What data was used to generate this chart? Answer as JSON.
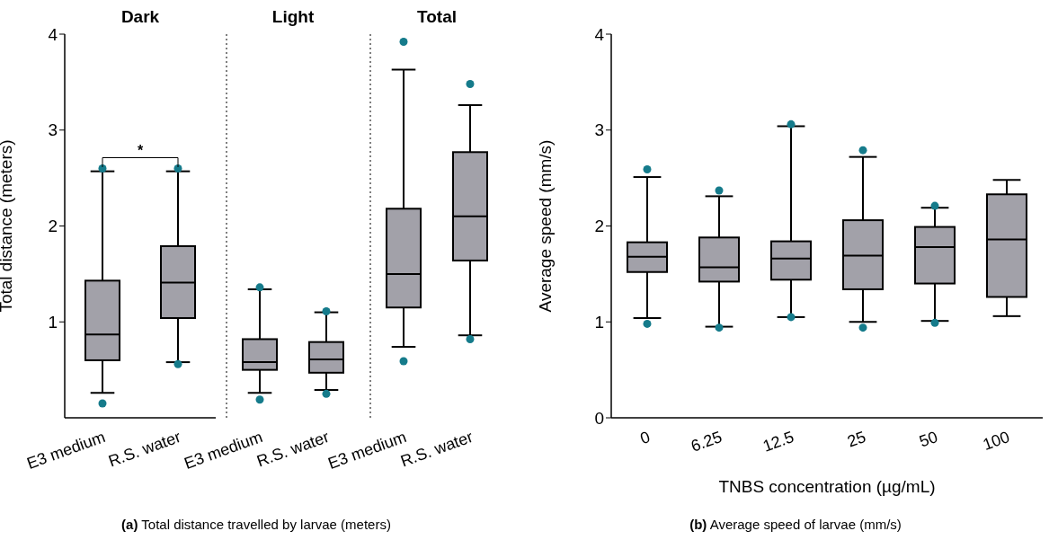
{
  "chart_data": [
    {
      "type": "box",
      "title": "Dark",
      "ylabel": "Total distance (meters)",
      "categories": [
        "E3 medium",
        "R.S. water"
      ],
      "ylim": [
        0,
        4
      ],
      "yticks": [
        1,
        2,
        3,
        4
      ],
      "series": [
        {
          "type": "box",
          "color": "#a2a1a9",
          "boxes": [
            {
              "low": 0.26,
              "q1": 0.6,
              "median": 0.87,
              "q3": 1.43,
              "high": 2.57
            },
            {
              "low": 0.58,
              "q1": 1.04,
              "median": 1.41,
              "q3": 1.79,
              "high": 2.57
            }
          ]
        },
        {
          "type": "scatter",
          "color": "#157b8b",
          "x": [
            "E3 medium",
            "E3 medium",
            "R.S. water",
            "R.S. water"
          ],
          "values": [
            2.6,
            0.15,
            2.6,
            0.56
          ]
        }
      ],
      "annotations": [
        "*",
        "(a) Total distance travelled by larvae (meters)"
      ]
    },
    {
      "type": "box",
      "title": "Light",
      "categories": [
        "E3 medium",
        "R.S. water"
      ],
      "ylim": [
        0,
        4
      ],
      "yticks": [
        1,
        2,
        3,
        4
      ],
      "tick_labels": "x",
      "series": [
        {
          "type": "box",
          "color": "#a2a1a9",
          "boxes": [
            {
              "low": 0.26,
              "q1": 0.5,
              "median": 0.58,
              "q3": 0.82,
              "high": 1.34
            },
            {
              "low": 0.29,
              "q1": 0.47,
              "median": 0.61,
              "q3": 0.79,
              "high": 1.1
            }
          ]
        },
        {
          "type": "scatter",
          "color": "#157b8b",
          "x": [
            "E3 medium",
            "E3 medium",
            "R.S. water",
            "R.S. water"
          ],
          "values": [
            1.36,
            0.19,
            1.11,
            0.25
          ]
        }
      ]
    },
    {
      "type": "box",
      "title": "Total",
      "categories": [
        "E3 medium",
        "R.S. water"
      ],
      "ylim": [
        0,
        4
      ],
      "yticks": [
        1,
        2,
        3,
        4
      ],
      "tick_labels": "x",
      "series": [
        {
          "type": "box",
          "color": "#a2a1a9",
          "boxes": [
            {
              "low": 0.74,
              "q1": 1.15,
              "median": 1.5,
              "q3": 2.18,
              "high": 3.63
            },
            {
              "low": 0.86,
              "q1": 1.64,
              "median": 2.1,
              "q3": 2.77,
              "high": 3.26
            }
          ]
        },
        {
          "type": "scatter",
          "color": "#157b8b",
          "x": [
            "E3 medium",
            "E3 medium",
            "R.S. water",
            "R.S. water"
          ],
          "values": [
            3.92,
            0.59,
            3.48,
            0.82
          ]
        }
      ]
    },
    {
      "type": "box",
      "xlabel": "TNBS concentration (µg/mL)",
      "ylabel": "Average speed (mm/s)",
      "categories": [
        "0",
        "6.25",
        "12.5",
        "25",
        "50",
        "100"
      ],
      "ylim": [
        0,
        4
      ],
      "yticks": [
        0,
        1,
        2,
        3,
        4
      ],
      "series": [
        {
          "type": "box",
          "color": "#a2a1a9",
          "boxes": [
            {
              "low": 1.04,
              "q1": 1.52,
              "median": 1.68,
              "q3": 1.83,
              "high": 2.51
            },
            {
              "low": 0.95,
              "q1": 1.42,
              "median": 1.57,
              "q3": 1.88,
              "high": 2.31
            },
            {
              "low": 1.05,
              "q1": 1.44,
              "median": 1.66,
              "q3": 1.84,
              "high": 3.04
            },
            {
              "low": 1.0,
              "q1": 1.34,
              "median": 1.69,
              "q3": 2.06,
              "high": 2.72
            },
            {
              "low": 1.01,
              "q1": 1.4,
              "median": 1.78,
              "q3": 1.99,
              "high": 2.19
            },
            {
              "low": 1.06,
              "q1": 1.26,
              "median": 1.86,
              "q3": 2.33,
              "high": 2.48
            }
          ]
        },
        {
          "type": "scatter",
          "color": "#157b8b",
          "x": [
            "0",
            "0",
            "6.25",
            "6.25",
            "12.5",
            "12.5",
            "25",
            "25",
            "50",
            "50"
          ],
          "values": [
            2.59,
            0.98,
            2.37,
            0.94,
            3.06,
            1.05,
            2.79,
            0.94,
            2.21,
            0.99
          ]
        }
      ],
      "annotations": [
        "(b) Average speed of larvae (mm/s)"
      ]
    }
  ]
}
